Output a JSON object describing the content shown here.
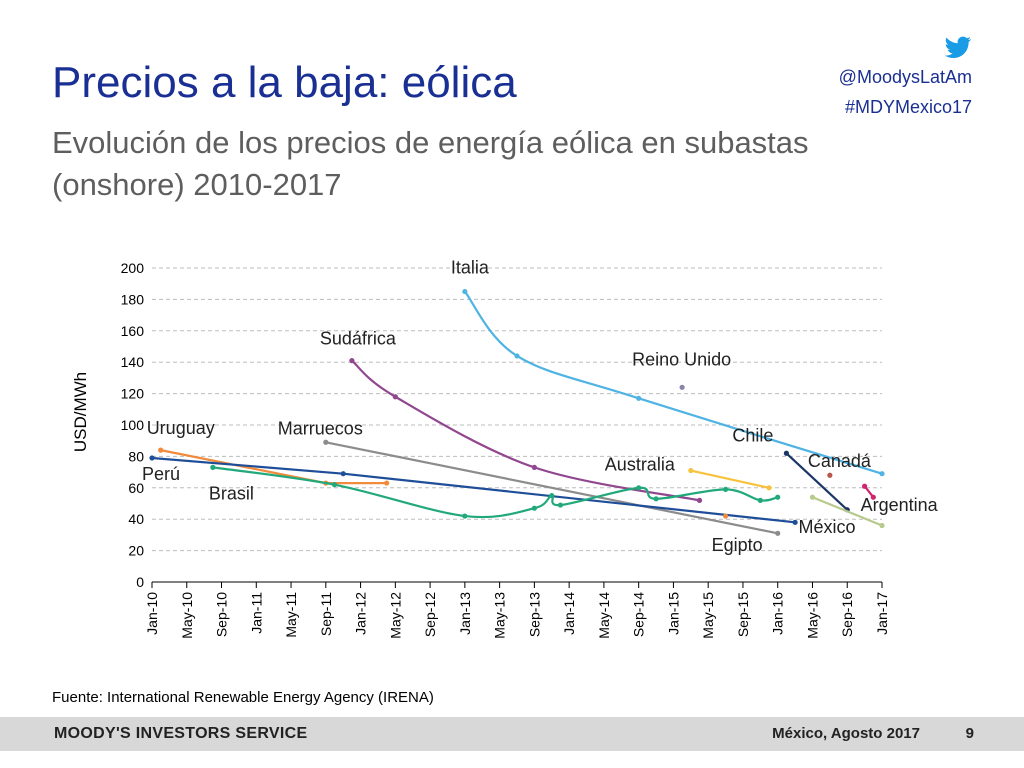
{
  "slide": {
    "title": "Precios a la baja: eólica",
    "subtitle": "Evolución de los precios de energía eólica en subastas (onshore) 2010-2017",
    "twitter_handle": "@MoodysLatAm",
    "hashtag": "#MDYMexico17",
    "twitter_icon": "twitter-bird-icon",
    "source": "Fuente: International Renewable Energy Agency (IRENA)",
    "footer_brand": "MOODY'S INVESTORS SERVICE",
    "footer_date": "México, Agosto 2017",
    "page_number": "9",
    "accent_color": "#1a2f93"
  },
  "chart_data": {
    "type": "line",
    "ylabel": "USD/MWh",
    "xlabel": "",
    "ylim": [
      0,
      200
    ],
    "yticks": [
      0,
      20,
      40,
      60,
      80,
      100,
      120,
      140,
      160,
      180,
      200
    ],
    "x_tick_labels": [
      "Jan-10",
      "May-10",
      "Sep-10",
      "Jan-11",
      "May-11",
      "Sep-11",
      "Jan-12",
      "May-12",
      "Sep-12",
      "Jan-13",
      "May-13",
      "Sep-13",
      "Jan-14",
      "May-14",
      "Sep-14",
      "Jan-15",
      "May-15",
      "Sep-15",
      "Jan-16",
      "May-16",
      "Sep-16",
      "Jan-17"
    ],
    "grid": "horizontal dashed",
    "series": [
      {
        "name": "Italia",
        "color": "#4fb3e3",
        "curve": true,
        "points": [
          [
            "2013-01",
            185
          ],
          [
            "2013-07",
            144
          ],
          [
            "2014-09",
            117
          ],
          [
            "2017-01",
            69
          ]
        ]
      },
      {
        "name": "Reino Unido",
        "color": "#8a84a9",
        "points": [
          [
            "2015-02",
            124
          ]
        ]
      },
      {
        "name": "Sudáfrica",
        "color": "#91478f",
        "curve": true,
        "points": [
          [
            "2011-12",
            141
          ],
          [
            "2012-05",
            118
          ],
          [
            "2013-09",
            73
          ],
          [
            "2015-04",
            52
          ]
        ]
      },
      {
        "name": "Marruecos",
        "color": "#8c8c8c",
        "points": [
          [
            "2011-09",
            89
          ],
          [
            "2016-01",
            31
          ]
        ]
      },
      {
        "name": "Uruguay",
        "color": "#f08a3c",
        "points": [
          [
            "2010-02",
            84
          ],
          [
            "2011-09",
            63
          ],
          [
            "2012-04",
            63
          ]
        ]
      },
      {
        "name": "Perú",
        "color": "#1f4e99",
        "points": [
          [
            "2010-01",
            79
          ],
          [
            "2011-11",
            69
          ],
          [
            "2016-03",
            38
          ]
        ]
      },
      {
        "name": "Brasil",
        "color": "#21a97b",
        "curve": true,
        "points": [
          [
            "2010-08",
            73
          ],
          [
            "2011-10",
            62
          ],
          [
            "2013-01",
            42
          ],
          [
            "2013-09",
            47
          ],
          [
            "2013-11",
            55
          ],
          [
            "2013-12",
            49
          ],
          [
            "2014-09",
            60
          ],
          [
            "2014-11",
            53
          ],
          [
            "2015-07",
            59
          ],
          [
            "2015-11",
            52
          ],
          [
            "2016-01",
            54
          ]
        ]
      },
      {
        "name": "Australia",
        "color": "#f7c23e",
        "points": [
          [
            "2015-03",
            71
          ],
          [
            "2015-12",
            60
          ]
        ]
      },
      {
        "name": "Egipto",
        "color": "#f08a3c",
        "points": [
          [
            "2015-07",
            42
          ]
        ]
      },
      {
        "name": "Chile",
        "color": "#1b3565",
        "points": [
          [
            "2016-02",
            82
          ],
          [
            "2016-09",
            46
          ]
        ]
      },
      {
        "name": "Canadá",
        "color": "#b8564a",
        "points": [
          [
            "2016-07",
            68
          ]
        ]
      },
      {
        "name": "México",
        "color": "#b7c98b",
        "points": [
          [
            "2016-05",
            54
          ],
          [
            "2017-01",
            36
          ]
        ]
      },
      {
        "name": "Argentina",
        "color": "#d1246e",
        "points": [
          [
            "2016-11",
            61
          ],
          [
            "2016-12",
            54
          ]
        ]
      }
    ]
  }
}
